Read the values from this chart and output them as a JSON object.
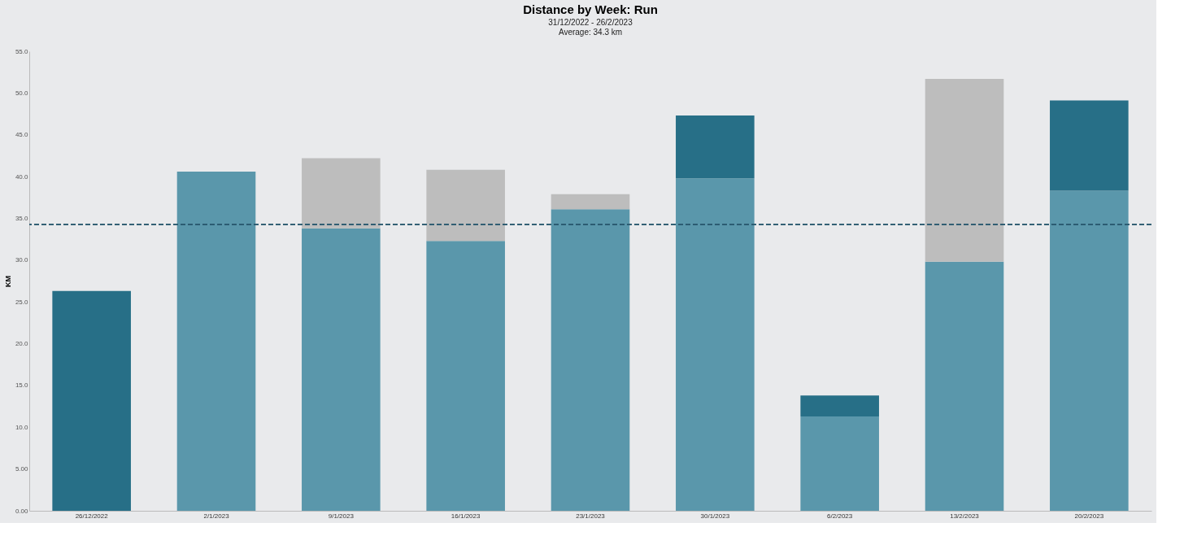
{
  "chart_data": {
    "type": "bar",
    "title": "Distance by Week: Run",
    "subtitle": "31/12/2022 - 26/2/2023",
    "annotations": [
      "Average: 34.3 km"
    ],
    "ylabel": "KM",
    "categories": [
      "26/12/2022",
      "2/1/2023",
      "9/1/2023",
      "16/1/2023",
      "23/1/2023",
      "30/1/2023",
      "6/2/2023",
      "13/2/2023",
      "20/2/2023"
    ],
    "stacked": true,
    "series": [
      {
        "color": "#5a97ab",
        "values": [
          null,
          40.6,
          33.8,
          32.3,
          36.1,
          39.8,
          11.3,
          29.8,
          38.3
        ]
      },
      {
        "color": "#276f87",
        "values": [
          26.3,
          null,
          null,
          null,
          null,
          7.5,
          2.5,
          null,
          10.8
        ]
      },
      {
        "color": "#bdbdbd",
        "values": [
          null,
          null,
          8.4,
          8.5,
          1.8,
          null,
          null,
          21.9,
          null
        ]
      }
    ],
    "ylim": [
      0,
      55
    ],
    "yticks": [
      {
        "value": 0,
        "label": "0.00"
      },
      {
        "value": 5,
        "label": "5.00"
      },
      {
        "value": 10,
        "label": "10.0"
      },
      {
        "value": 15,
        "label": "15.0"
      },
      {
        "value": 20,
        "label": "20.0"
      },
      {
        "value": 25,
        "label": "25.0"
      },
      {
        "value": 30,
        "label": "30.0"
      },
      {
        "value": 35,
        "label": "35.0"
      },
      {
        "value": 40,
        "label": "40.0"
      },
      {
        "value": 45,
        "label": "45.0"
      },
      {
        "value": 50,
        "label": "50.0"
      },
      {
        "value": 55,
        "label": "55.0"
      }
    ],
    "ref_lines": [
      {
        "axis": "y",
        "value": 34.3,
        "color": "#2e5b70",
        "line_style": "dashed"
      }
    ],
    "grid": false,
    "legend": false
  }
}
